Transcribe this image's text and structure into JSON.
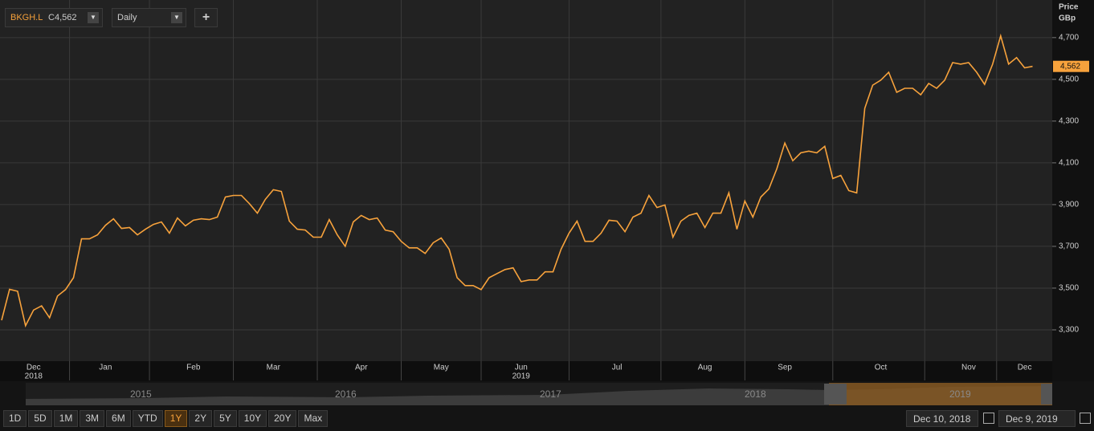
{
  "toolbar": {
    "ticker": "BKGH.L",
    "close_prefix": "C",
    "interval": "Daily",
    "add": "+"
  },
  "chart_data": {
    "type": "line",
    "y_label": "Price",
    "y_unit": "GBp",
    "color": "#f7a23c",
    "grid": true,
    "categories": [
      null,
      null,
      null,
      null,
      "Dec",
      null,
      null,
      null,
      null,
      null,
      null,
      null,
      null,
      "Jan",
      null,
      null,
      null,
      null,
      null,
      null,
      null,
      null,
      null,
      null,
      "Feb",
      null,
      null,
      null,
      null,
      null,
      null,
      null,
      null,
      null,
      "Mar",
      null,
      null,
      null,
      null,
      null,
      null,
      null,
      null,
      null,
      null,
      "Apr",
      null,
      null,
      null,
      null,
      null,
      null,
      null,
      null,
      null,
      "May",
      null,
      null,
      null,
      null,
      null,
      null,
      null,
      null,
      null,
      "Jun",
      null,
      null,
      null,
      null,
      null,
      null,
      null,
      null,
      null,
      null,
      null,
      "Jul",
      null,
      null,
      null,
      null,
      null,
      null,
      null,
      null,
      null,
      null,
      "Aug",
      null,
      null,
      null,
      null,
      null,
      null,
      null,
      null,
      null,
      "Sep",
      null,
      null,
      null,
      null,
      null,
      null,
      null,
      null,
      null,
      null,
      null,
      "Oct",
      null,
      null,
      null,
      null,
      null,
      null,
      null,
      null,
      null,
      null,
      "Nov",
      null,
      null,
      null,
      null,
      null,
      null,
      "Dec",
      null
    ],
    "year_labels": [
      {
        "category": 4,
        "label": "2018"
      },
      {
        "category": 65,
        "label": "2019"
      }
    ],
    "values": [
      3346,
      3494,
      3485,
      3320,
      3395,
      3415,
      3358,
      3462,
      3493,
      3550,
      3736,
      3736,
      3755,
      3801,
      3832,
      3786,
      3790,
      3755,
      3782,
      3805,
      3817,
      3763,
      3836,
      3798,
      3825,
      3832,
      3828,
      3840,
      3936,
      3944,
      3944,
      3905,
      3859,
      3925,
      3971,
      3963,
      3821,
      3782,
      3778,
      3744,
      3744,
      3828,
      3755,
      3700,
      3817,
      3848,
      3828,
      3836,
      3778,
      3770,
      3724,
      3693,
      3693,
      3666,
      3717,
      3740,
      3686,
      3550,
      3512,
      3512,
      3493,
      3550,
      3570,
      3589,
      3597,
      3531,
      3539,
      3539,
      3578,
      3578,
      3686,
      3763,
      3821,
      3724,
      3724,
      3763,
      3825,
      3821,
      3770,
      3840,
      3859,
      3944,
      3886,
      3898,
      3744,
      3821,
      3848,
      3859,
      3790,
      3859,
      3859,
      3956,
      3782,
      3917,
      3840,
      3936,
      3975,
      4071,
      4195,
      4110,
      4148,
      4156,
      4148,
      4179,
      4025,
      4040,
      3967,
      3956,
      4361,
      4472,
      4496,
      4534,
      4438,
      4457,
      4457,
      4426,
      4480,
      4457,
      4496,
      4580,
      4573,
      4580,
      4534,
      4476,
      4573,
      4708,
      4573,
      4604,
      4555,
      4562
    ],
    "last_price": {
      "value": 4562,
      "label": "4,562"
    },
    "ylim": [
      3150,
      4880
    ],
    "yticks": [
      {
        "value": 3300,
        "label": "3,300"
      },
      {
        "value": 3500,
        "label": "3,500"
      },
      {
        "value": 3700,
        "label": "3,700"
      },
      {
        "value": 3900,
        "label": "3,900"
      },
      {
        "value": 4100,
        "label": "4,100"
      },
      {
        "value": 4300,
        "label": "4,300"
      },
      {
        "value": 4500,
        "label": "4,500"
      },
      {
        "value": 4700,
        "label": "4,700"
      }
    ]
  },
  "navigator": {
    "years": [
      "2015",
      "2016",
      "2017",
      "2018",
      "2019"
    ]
  },
  "range_buttons": [
    "1D",
    "5D",
    "1M",
    "3M",
    "6M",
    "YTD",
    "1Y",
    "2Y",
    "5Y",
    "10Y",
    "20Y",
    "Max"
  ],
  "active_range": 6,
  "date_from": "Dec 10, 2018",
  "date_to": "Dec 9, 2019"
}
